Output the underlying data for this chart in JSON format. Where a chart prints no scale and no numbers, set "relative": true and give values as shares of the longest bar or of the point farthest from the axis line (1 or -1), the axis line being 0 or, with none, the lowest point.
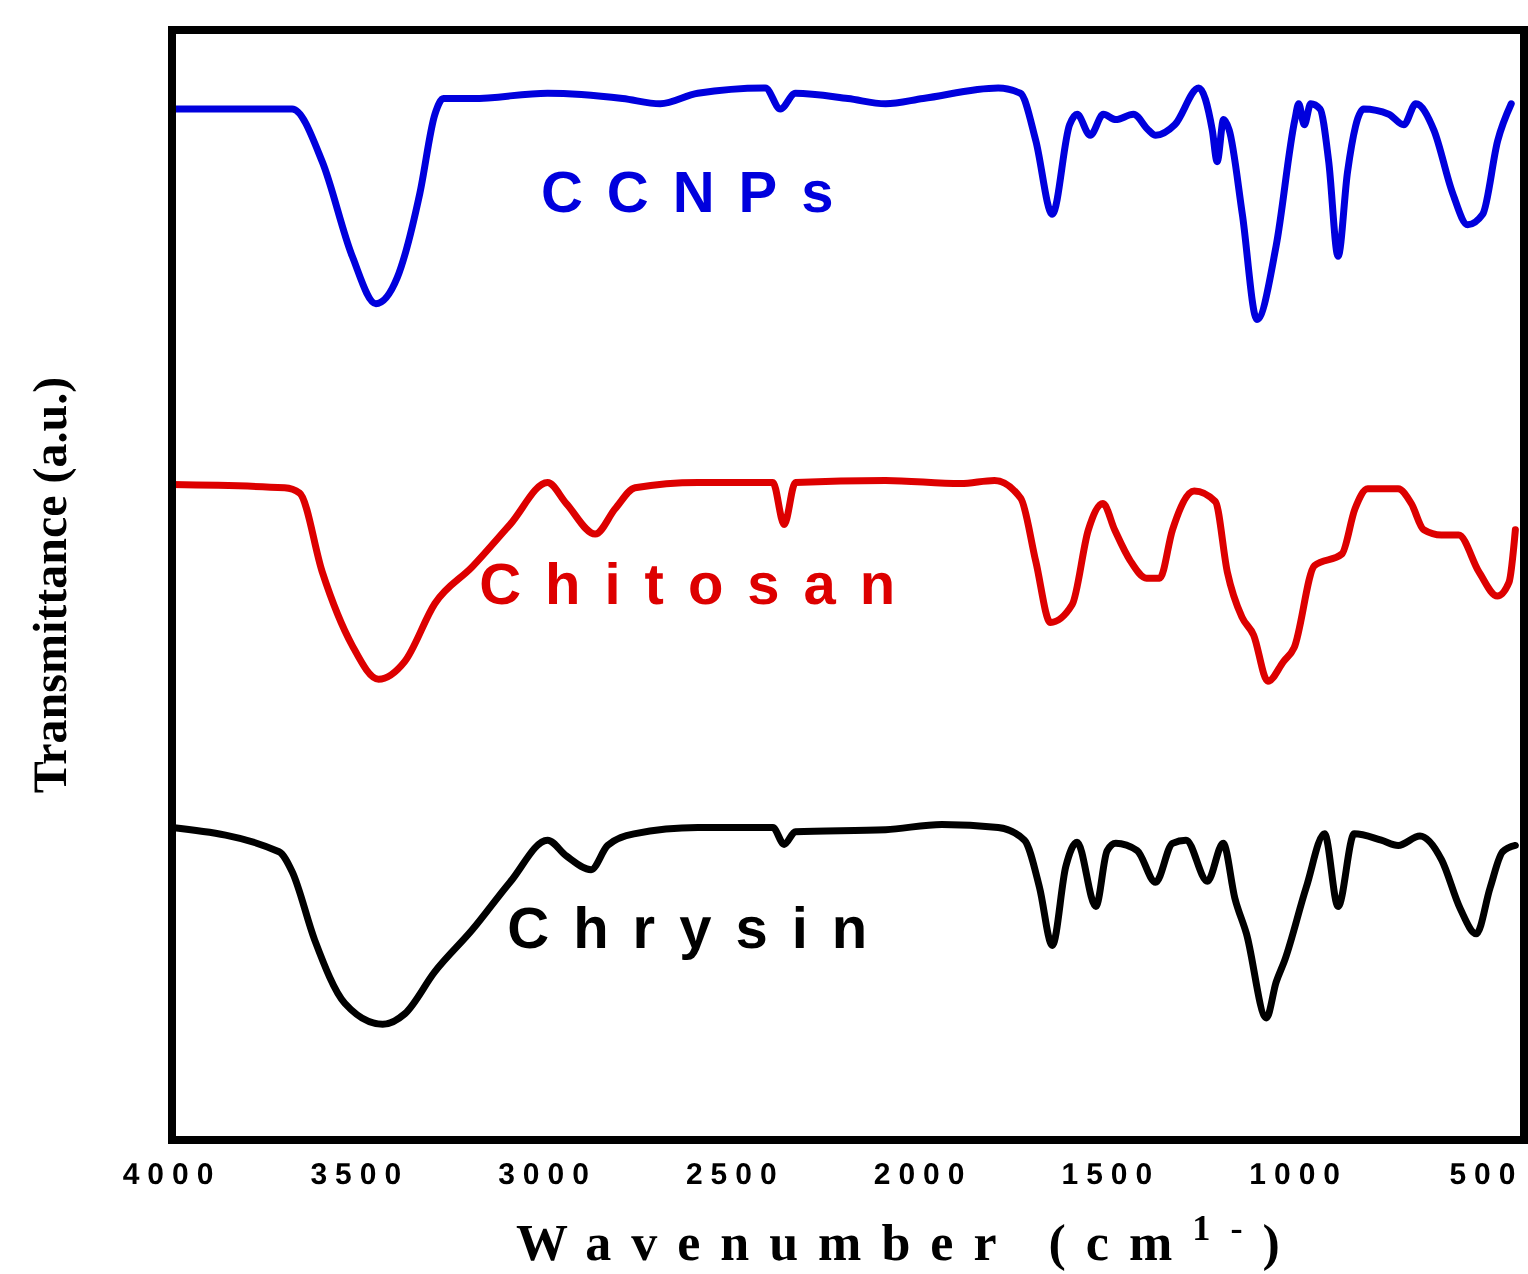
{
  "chart_data": {
    "type": "line",
    "relative": true,
    "xlabel": "Wavenumber (cm$^{1-}$)",
    "ylabel": "Transmittance (a.u.)",
    "xlim": [
      4000,
      400
    ],
    "xticks": [
      4000,
      3500,
      3000,
      2500,
      2000,
      1500,
      1000,
      500
    ],
    "grid": false,
    "marker": "none",
    "line_style": "solid",
    "series": [
      {
        "name": "CCNPs",
        "color": "#0000dd",
        "x": [
          4000,
          3680,
          3600,
          3520,
          3457,
          3400,
          3340,
          3300,
          3277,
          3200,
          3000,
          2800,
          2700,
          2600,
          2420,
          2380,
          2340,
          2200,
          2100,
          2000,
          1800,
          1741,
          1700,
          1656,
          1610,
          1590,
          1555,
          1520,
          1487,
          1440,
          1400,
          1381,
          1330,
          1266,
          1230,
          1217,
          1200,
          1185,
          1150,
          1111,
          1060,
          1010,
          1000,
          985,
          968,
          943,
          920,
          895,
          870,
          827,
          760,
          720,
          688,
          640,
          590,
          550,
          510,
          470,
          434
        ],
        "values": [
          0.98,
          0.98,
          0.93,
          0.84,
          0.795,
          0.82,
          0.9,
          0.975,
          0.99,
          0.99,
          0.995,
          0.99,
          0.985,
          0.995,
          1.0,
          0.98,
          0.995,
          0.99,
          0.985,
          0.99,
          1.0,
          0.995,
          0.95,
          0.88,
          0.965,
          0.975,
          0.955,
          0.975,
          0.97,
          0.975,
          0.96,
          0.955,
          0.965,
          1.0,
          0.96,
          0.93,
          0.97,
          0.96,
          0.88,
          0.78,
          0.85,
          0.97,
          0.985,
          0.965,
          0.985,
          0.98,
          0.93,
          0.84,
          0.92,
          0.98,
          0.975,
          0.965,
          0.985,
          0.96,
          0.9,
          0.87,
          0.88,
          0.95,
          0.985
        ]
      },
      {
        "name": "Chitosan",
        "color": "#dd0000",
        "x": [
          4000,
          3700,
          3660,
          3600,
          3520,
          3450,
          3380,
          3300,
          3200,
          3100,
          3000,
          2950,
          2873,
          2820,
          2767,
          2600,
          2400,
          2370,
          2340,
          2100,
          1900,
          1810,
          1740,
          1700,
          1661,
          1603,
          1560,
          1521,
          1490,
          1449,
          1405,
          1370,
          1336,
          1278,
          1222,
          1190,
          1151,
          1120,
          1082,
          1040,
          1012,
          958,
          885,
          850,
          816,
          735,
          700,
          667,
          620,
          574,
          520,
          471,
          440,
          423
        ],
        "values": [
          0.623,
          0.62,
          0.615,
          0.54,
          0.47,
          0.438,
          0.455,
          0.51,
          0.545,
          0.585,
          0.625,
          0.605,
          0.576,
          0.6,
          0.62,
          0.625,
          0.625,
          0.585,
          0.625,
          0.627,
          0.624,
          0.627,
          0.61,
          0.55,
          0.492,
          0.509,
          0.58,
          0.605,
          0.58,
          0.551,
          0.534,
          0.534,
          0.58,
          0.617,
          0.607,
          0.54,
          0.497,
          0.48,
          0.436,
          0.455,
          0.468,
          0.546,
          0.557,
          0.6,
          0.619,
          0.619,
          0.605,
          0.58,
          0.575,
          0.575,
          0.54,
          0.517,
          0.53,
          0.58
        ]
      },
      {
        "name": "Chrysin",
        "color": "#000000",
        "x": [
          4000,
          3715,
          3680,
          3620,
          3540,
          3439,
          3380,
          3300,
          3200,
          3100,
          3000,
          2950,
          2884,
          2840,
          2770,
          2600,
          2400,
          2370,
          2340,
          2100,
          1950,
          1800,
          1730,
          1690,
          1656,
          1620,
          1590,
          1540,
          1510,
          1487,
          1430,
          1381,
          1336,
          1300,
          1243,
          1201,
          1170,
          1139,
          1086,
          1060,
          1037,
          980,
          931,
          895,
          852,
          780,
          735,
          677,
          619,
          570,
          527,
          490,
          457,
          423
        ],
        "values": [
          0.297,
          0.274,
          0.255,
          0.19,
          0.13,
          0.11,
          0.12,
          0.16,
          0.2,
          0.245,
          0.285,
          0.27,
          0.257,
          0.28,
          0.291,
          0.297,
          0.297,
          0.281,
          0.293,
          0.295,
          0.3,
          0.297,
          0.285,
          0.24,
          0.185,
          0.26,
          0.283,
          0.222,
          0.275,
          0.282,
          0.275,
          0.245,
          0.282,
          0.285,
          0.246,
          0.282,
          0.23,
          0.196,
          0.116,
          0.15,
          0.171,
          0.24,
          0.291,
          0.222,
          0.291,
          0.285,
          0.28,
          0.289,
          0.266,
          0.22,
          0.196,
          0.24,
          0.274,
          0.28
        ]
      }
    ]
  }
}
